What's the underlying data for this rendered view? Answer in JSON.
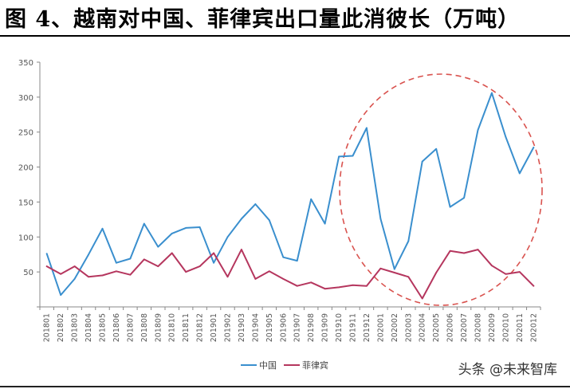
{
  "chart_data": {
    "type": "line",
    "title": "图 4、越南对中国、菲律宾出口量此消彼长（万吨）",
    "categories": [
      "201801",
      "201802",
      "201803",
      "201804",
      "201805",
      "201806",
      "201807",
      "201808",
      "201809",
      "201810",
      "201811",
      "201812",
      "201901",
      "201902",
      "201903",
      "201904",
      "201905",
      "201906",
      "201907",
      "201908",
      "201909",
      "201910",
      "201911",
      "201912",
      "202001",
      "202002",
      "202003",
      "202004",
      "202005",
      "202006",
      "202007",
      "202008",
      "202009",
      "202010",
      "202011",
      "202012"
    ],
    "series": [
      {
        "name": "中国",
        "color": "#3a8fce",
        "values": [
          76,
          17,
          40,
          75,
          112,
          63,
          69,
          119,
          86,
          105,
          113,
          114,
          63,
          100,
          126,
          147,
          124,
          71,
          66,
          154,
          119,
          215,
          216,
          256,
          126,
          54,
          94,
          208,
          226,
          143,
          156,
          253,
          306,
          243,
          191,
          228
        ]
      },
      {
        "name": "菲律宾",
        "color": "#b5365e",
        "values": [
          58,
          47,
          58,
          43,
          45,
          51,
          46,
          68,
          58,
          77,
          50,
          58,
          77,
          43,
          82,
          40,
          51,
          40,
          30,
          35,
          26,
          28,
          31,
          30,
          55,
          49,
          43,
          12,
          49,
          80,
          77,
          82,
          59,
          47,
          50,
          30
        ]
      }
    ],
    "ylim": [
      0,
      350
    ],
    "yticks": [
      0,
      50,
      100,
      150,
      200,
      250,
      300,
      350
    ],
    "yticks_shown": [
      "50",
      "100",
      "150",
      "200",
      "250",
      "300",
      "350"
    ],
    "legend_position": "bottom-center",
    "grid": false,
    "annotation": "red dashed ellipse highlighting 201910–202012",
    "annotation_color": "#d9534f"
  },
  "watermark": "头条 @未来智库"
}
